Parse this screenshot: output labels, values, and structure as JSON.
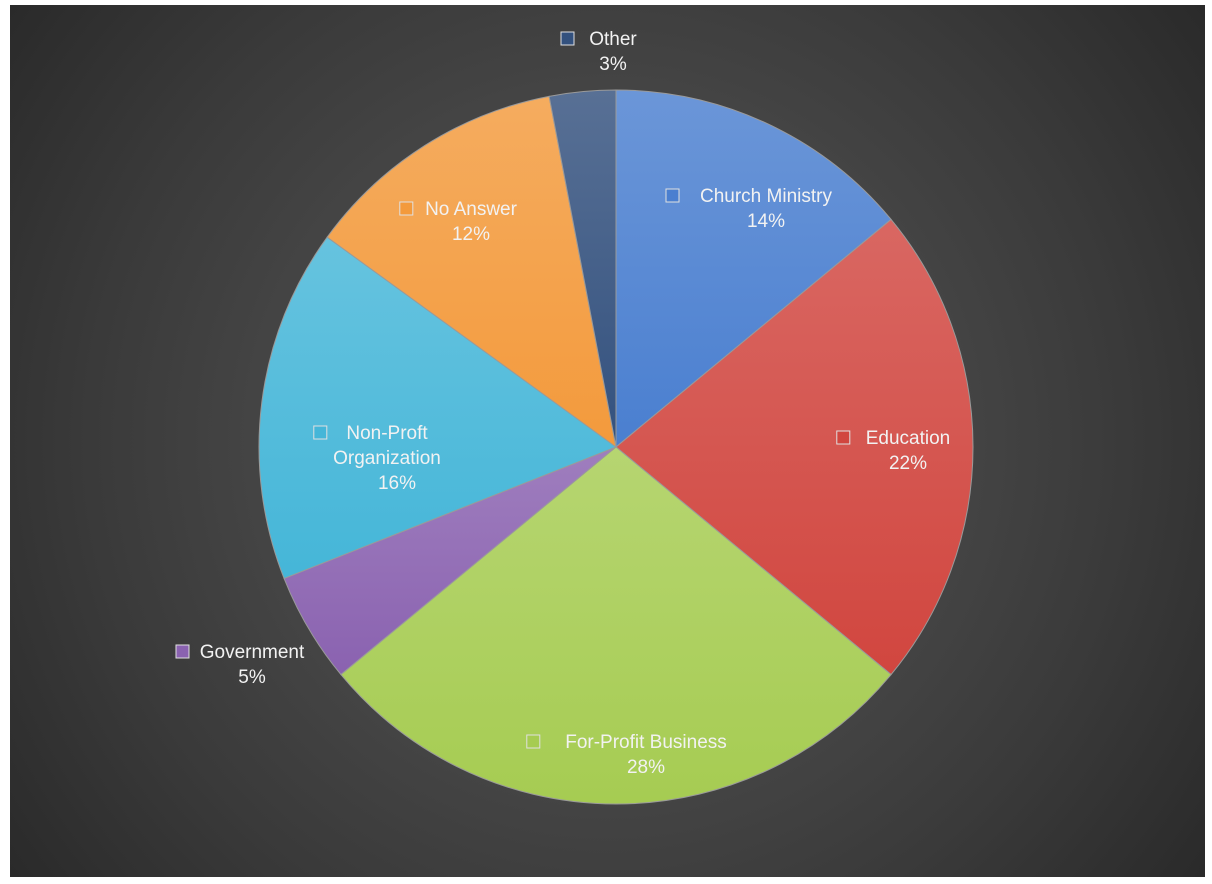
{
  "chart_data": {
    "type": "pie",
    "title": "",
    "categories": [
      "Church Ministry",
      "Education",
      "For-Profit Business",
      "Government",
      "Non-Proft Organization",
      "No Answer",
      "Other"
    ],
    "values": [
      14,
      22,
      28,
      5,
      16,
      12,
      3
    ],
    "value_labels": [
      "14%",
      "22%",
      "28%",
      "5%",
      "16%",
      "12%",
      "3%"
    ],
    "colors": [
      "#4a7fd0",
      "#d1463f",
      "#a6cc52",
      "#8a62b0",
      "#45b6d8",
      "#f39a3c",
      "#33517e"
    ],
    "start_angle_deg": 0,
    "direction": "clockwise",
    "legend": "none",
    "data_labels": "inside-with-category"
  }
}
